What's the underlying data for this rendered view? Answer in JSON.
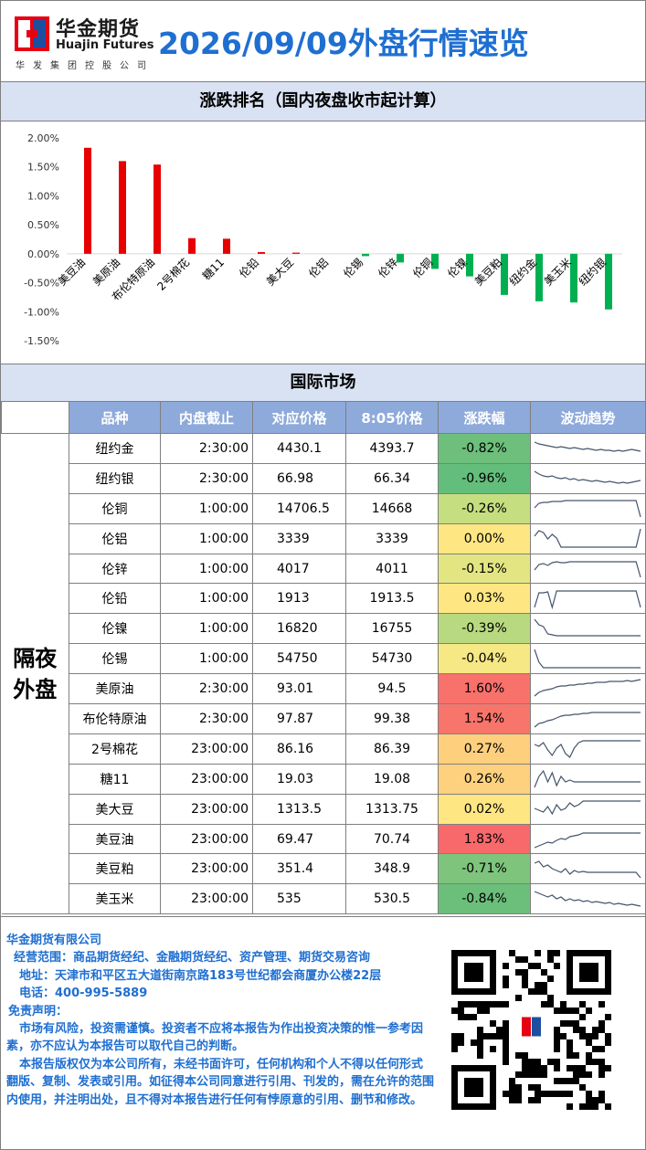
{
  "header": {
    "logo_cn": "华金期货",
    "logo_en": "Huajin Futures",
    "logo_sub": "华发集团控股公司",
    "title": "2026/09/09外盘行情速览"
  },
  "rank_section": {
    "title": "涨跌排名（国内夜盘收市起计算）"
  },
  "chart_data": {
    "type": "bar",
    "title": "",
    "xlabel": "",
    "ylabel": "",
    "ylim": [
      -1.5,
      2.0
    ],
    "yticks": [
      "2.00%",
      "1.50%",
      "1.00%",
      "0.50%",
      "0.00%",
      "-0.50%",
      "-1.00%",
      "-1.50%"
    ],
    "categories": [
      "美豆油",
      "美原油",
      "布伦特原油",
      "2号棉花",
      "糖11",
      "伦铅",
      "美大豆",
      "伦铝",
      "伦锡",
      "伦锌",
      "伦铜",
      "伦镍",
      "美豆粕",
      "纽约金",
      "美玉米",
      "纽约银"
    ],
    "values": [
      1.83,
      1.6,
      1.54,
      0.27,
      0.26,
      0.03,
      0.02,
      0.0,
      -0.04,
      -0.15,
      -0.26,
      -0.39,
      -0.71,
      -0.82,
      -0.84,
      -0.96
    ],
    "colors": {
      "positive": "#e60000",
      "negative": "#00b050"
    },
    "grid": false
  },
  "intl_section": {
    "title": "国际市场"
  },
  "table": {
    "headers": [
      "品种",
      "内盘截止",
      "对应价格",
      "8:05价格",
      "涨跌幅",
      "波动趋势"
    ],
    "group_label": "隔夜外盘",
    "rows": [
      {
        "name": "纽约金",
        "close": "2:30:00",
        "price": "4430.1",
        "price805": "4393.7",
        "change": "-0.82%",
        "color": "#6dbf7b",
        "trend": [
          6,
          8,
          9,
          10,
          11,
          12,
          11,
          12,
          13,
          12,
          13,
          14,
          13,
          14,
          15,
          14,
          15,
          15,
          16,
          15,
          16,
          15,
          14,
          15,
          16
        ]
      },
      {
        "name": "纽约银",
        "close": "2:30:00",
        "price": "66.98",
        "price805": "66.34",
        "change": "-0.96%",
        "color": "#63be7b",
        "trend": [
          5,
          8,
          10,
          11,
          10,
          12,
          13,
          12,
          14,
          13,
          15,
          14,
          15,
          16,
          15,
          16,
          17,
          16,
          17,
          18,
          17,
          18,
          17,
          16,
          15
        ]
      },
      {
        "name": "伦铜",
        "close": "1:00:00",
        "price": "14706.5",
        "price805": "14668",
        "change": "-0.26%",
        "color": "#c5df80",
        "trend": [
          12,
          7,
          6,
          6,
          5,
          5,
          5,
          4,
          4,
          4,
          4,
          4,
          4,
          4,
          4,
          4,
          4,
          4,
          4,
          4,
          4,
          4,
          4,
          4,
          22
        ]
      },
      {
        "name": "伦铝",
        "close": "1:00:00",
        "price": "3339",
        "price805": "3339",
        "change": "0.00%",
        "color": "#fee783",
        "trend": [
          10,
          4,
          6,
          13,
          8,
          12,
          22,
          22,
          22,
          22,
          22,
          22,
          22,
          22,
          22,
          22,
          22,
          22,
          22,
          22,
          22,
          22,
          22,
          22,
          2
        ]
      },
      {
        "name": "伦锌",
        "close": "1:00:00",
        "price": "4017",
        "price805": "4011",
        "change": "-0.15%",
        "color": "#e3e583",
        "trend": [
          14,
          8,
          7,
          9,
          6,
          5,
          6,
          6,
          5,
          5,
          5,
          5,
          5,
          5,
          5,
          5,
          5,
          5,
          5,
          5,
          5,
          5,
          5,
          5,
          22
        ]
      },
      {
        "name": "伦铅",
        "close": "1:00:00",
        "price": "1913",
        "price805": "1913.5",
        "change": "0.03%",
        "color": "#fee783",
        "trend": [
          22,
          6,
          6,
          5,
          22,
          4,
          4,
          4,
          4,
          4,
          4,
          4,
          4,
          4,
          4,
          4,
          4,
          4,
          4,
          4,
          4,
          4,
          4,
          4,
          22
        ]
      },
      {
        "name": "伦镍",
        "close": "1:00:00",
        "price": "16820",
        "price805": "16755",
        "change": "-0.39%",
        "color": "#b8d97f",
        "trend": [
          2,
          8,
          10,
          18,
          19,
          20,
          20,
          20,
          20,
          20,
          20,
          20,
          20,
          20,
          20,
          20,
          20,
          20,
          20,
          20,
          20,
          20,
          20,
          20,
          20
        ]
      },
      {
        "name": "伦锡",
        "close": "1:00:00",
        "price": "54750",
        "price805": "54730",
        "change": "-0.04%",
        "color": "#f6e884",
        "trend": [
          2,
          16,
          22,
          22,
          22,
          22,
          22,
          22,
          22,
          22,
          22,
          22,
          22,
          22,
          22,
          22,
          22,
          22,
          22,
          22,
          22,
          22,
          22,
          22,
          22
        ]
      },
      {
        "name": "美原油",
        "close": "2:30:00",
        "price": "93.01",
        "price805": "94.5",
        "change": "1.60%",
        "color": "#f8716b",
        "trend": [
          20,
          16,
          14,
          13,
          12,
          10,
          9,
          9,
          8,
          8,
          7,
          7,
          6,
          6,
          5,
          5,
          5,
          4,
          4,
          4,
          4,
          3,
          4,
          3,
          2
        ]
      },
      {
        "name": "布伦特原油",
        "close": "2:30:00",
        "price": "97.87",
        "price805": "99.38",
        "change": "1.54%",
        "color": "#f8756b",
        "trend": [
          22,
          18,
          17,
          15,
          14,
          12,
          10,
          9,
          9,
          8,
          8,
          7,
          7,
          6,
          6,
          6,
          6,
          6,
          6,
          6,
          6,
          6,
          6,
          6,
          6
        ]
      },
      {
        "name": "2号棉花",
        "close": "23:00:00",
        "price": "86.16",
        "price805": "86.39",
        "change": "0.27%",
        "color": "#fed07e",
        "trend": [
          8,
          10,
          6,
          14,
          20,
          12,
          8,
          18,
          22,
          12,
          6,
          4,
          4,
          4,
          4,
          4,
          4,
          4,
          4,
          4,
          4,
          4,
          4,
          4,
          4
        ]
      },
      {
        "name": "糖11",
        "close": "23:00:00",
        "price": "19.03",
        "price805": "19.08",
        "change": "0.26%",
        "color": "#fed17e",
        "trend": [
          22,
          10,
          4,
          16,
          6,
          20,
          10,
          16,
          14,
          16,
          16,
          16,
          16,
          16,
          16,
          16,
          16,
          16,
          16,
          16,
          16,
          16,
          16,
          16,
          16
        ]
      },
      {
        "name": "美大豆",
        "close": "23:00:00",
        "price": "1313.5",
        "price805": "1313.75",
        "change": "0.02%",
        "color": "#fee683",
        "trend": [
          12,
          14,
          16,
          10,
          18,
          8,
          14,
          12,
          6,
          10,
          8,
          4,
          4,
          4,
          4,
          4,
          4,
          4,
          4,
          4,
          4,
          4,
          4,
          4,
          4
        ]
      },
      {
        "name": "美豆油",
        "close": "23:00:00",
        "price": "69.47",
        "price805": "70.74",
        "change": "1.83%",
        "color": "#f8696b",
        "trend": [
          22,
          20,
          18,
          16,
          17,
          14,
          12,
          13,
          10,
          9,
          8,
          6,
          6,
          6,
          6,
          6,
          6,
          6,
          6,
          6,
          6,
          6,
          6,
          6,
          6
        ]
      },
      {
        "name": "美豆粕",
        "close": "23:00:00",
        "price": "351.4",
        "price805": "348.9",
        "change": "-0.71%",
        "color": "#7ec47d",
        "trend": [
          6,
          4,
          10,
          8,
          12,
          14,
          16,
          12,
          18,
          14,
          16,
          15,
          16,
          16,
          16,
          16,
          16,
          16,
          16,
          16,
          16,
          16,
          16,
          16,
          22
        ]
      },
      {
        "name": "美玉米",
        "close": "23:00:00",
        "price": "535",
        "price805": "530.5",
        "change": "-0.84%",
        "color": "#6cbf7b",
        "trend": [
          4,
          6,
          8,
          10,
          8,
          12,
          10,
          14,
          12,
          14,
          13,
          15,
          14,
          16,
          15,
          16,
          17,
          16,
          18,
          17,
          18,
          19,
          18,
          19,
          20
        ]
      }
    ]
  },
  "footer": {
    "company": "华金期货有限公司",
    "scope": "经营范围：商品期货经纪、金融期货经纪、资产管理、期货交易咨询",
    "address": "地址：天津市和平区五大道街南京路183号世纪都会商厦办公楼22层",
    "phone": "电话：400-995-5889",
    "disclaimer_title": "免责声明：",
    "disclaimer_1": "市场有风险，投资需谨慎。投资者不应将本报告为作出投资决策的惟一参考因素，亦不应认为本报告可以取代自己的判断。",
    "disclaimer_2": "本报告版权仅为本公司所有，未经书面许可，任何机构和个人不得以任何形式翻版、复制、发表或引用。如征得本公司同意进行引用、刊发的，需在允许的范围内使用，并注明出处，且不得对本报告进行任何有悖原意的引用、删节和修改。",
    "qr_icon": "qr-code-icon"
  }
}
